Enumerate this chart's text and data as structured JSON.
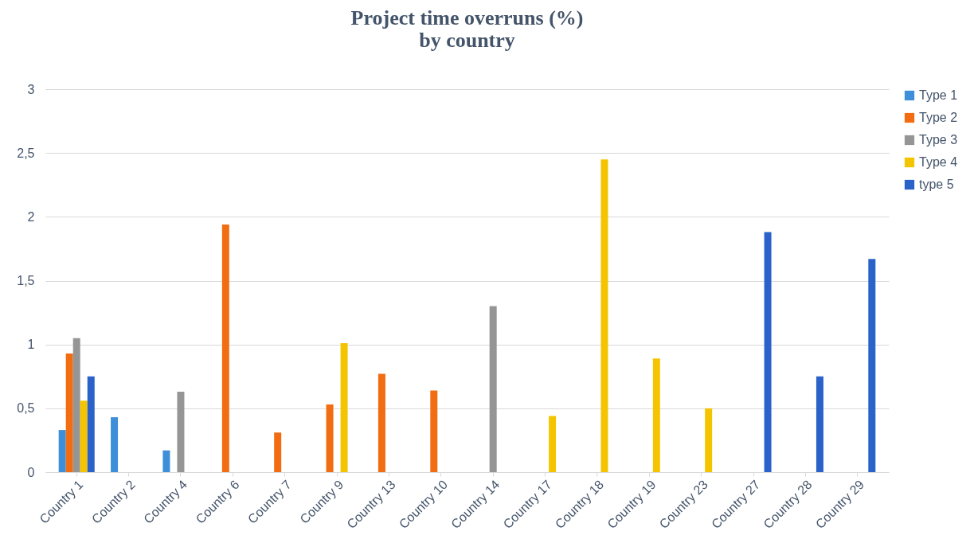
{
  "chart_data": {
    "type": "bar",
    "title": "Project time overruns (%)\nby country",
    "categories": [
      "Country 1",
      "Country 2",
      "Country 4",
      "Country 6",
      "Country 7",
      "Country 9",
      "Country 13",
      "Country 10",
      "Country 14",
      "Country 17",
      "Country 18",
      "Country 19",
      "Country 23",
      "Country 27",
      "Country 28",
      "Country 29"
    ],
    "series": [
      {
        "name": "Type 1",
        "color": "#3d8fd9",
        "values": [
          0.33,
          0.43,
          0.17,
          null,
          null,
          null,
          null,
          null,
          null,
          null,
          null,
          null,
          null,
          null,
          null,
          null
        ]
      },
      {
        "name": "Type 2",
        "color": "#f26c12",
        "values": [
          0.93,
          null,
          null,
          1.94,
          0.31,
          0.53,
          0.77,
          0.64,
          null,
          null,
          null,
          null,
          null,
          null,
          null,
          null
        ]
      },
      {
        "name": "Type 3",
        "color": "#959595",
        "values": [
          1.05,
          null,
          0.63,
          null,
          null,
          null,
          null,
          null,
          1.3,
          null,
          null,
          null,
          null,
          null,
          null,
          null
        ]
      },
      {
        "name": "Type 4",
        "color": "#f5c400",
        "values": [
          0.56,
          null,
          null,
          null,
          null,
          1.01,
          null,
          null,
          null,
          0.44,
          2.45,
          0.89,
          0.5,
          null,
          null,
          null
        ]
      },
      {
        "name": "type 5",
        "color": "#2a62c9",
        "values": [
          0.75,
          null,
          null,
          null,
          null,
          null,
          null,
          null,
          null,
          null,
          null,
          null,
          null,
          1.88,
          0.75,
          1.67
        ]
      }
    ],
    "ylim": [
      0,
      3
    ],
    "yticks": [
      0,
      {
        "value": 0.5,
        "label": "0,5"
      },
      1,
      {
        "value": 1.5,
        "label": "1,5"
      },
      2,
      {
        "value": 2.5,
        "label": "2,5"
      },
      3
    ],
    "grid": "y",
    "legend": "right"
  }
}
